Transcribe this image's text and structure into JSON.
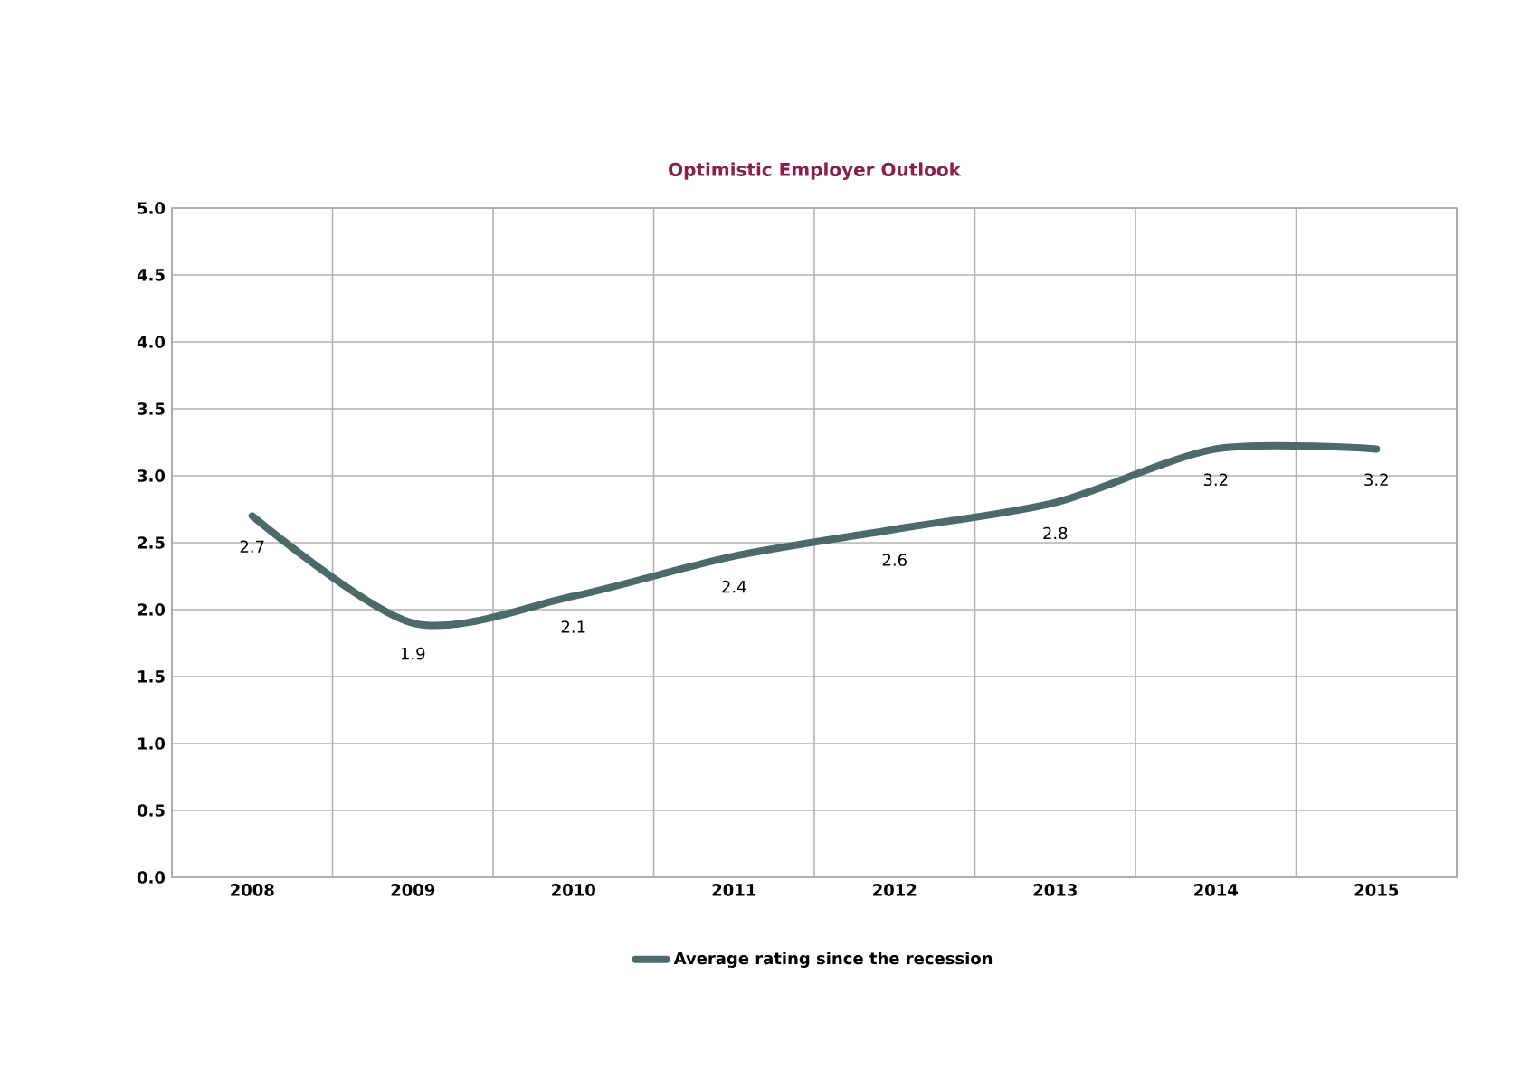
{
  "chart_data": {
    "type": "line",
    "title": "Optimistic Employer Outlook",
    "categories": [
      "2008",
      "2009",
      "2010",
      "2011",
      "2012",
      "2013",
      "2014",
      "2015"
    ],
    "series": [
      {
        "name": "Average rating since the recession",
        "color": "#4c6a69",
        "values": [
          2.7,
          1.9,
          2.1,
          2.4,
          2.6,
          2.8,
          3.2,
          3.2
        ],
        "value_labels": [
          "2.7",
          "1.9",
          "2.1",
          "2.4",
          "2.6",
          "2.8",
          "3.2",
          "3.2"
        ]
      }
    ],
    "ylim": [
      0,
      5
    ],
    "yticks": [
      {
        "value": 0,
        "label": "0.0"
      },
      {
        "value": 0.5,
        "label": "0.5"
      },
      {
        "value": 1,
        "label": "1.0"
      },
      {
        "value": 1.5,
        "label": "1.5"
      },
      {
        "value": 2,
        "label": "2.0"
      },
      {
        "value": 2.5,
        "label": "2.5"
      },
      {
        "value": 3,
        "label": "3.0"
      },
      {
        "value": 3.5,
        "label": "3.5"
      },
      {
        "value": 4,
        "label": "4.0"
      },
      {
        "value": 4.5,
        "label": "4.5"
      },
      {
        "value": 5,
        "label": "5.0"
      }
    ],
    "grid": true,
    "legend": "bottom",
    "marker": "none",
    "line_style": "solid"
  }
}
